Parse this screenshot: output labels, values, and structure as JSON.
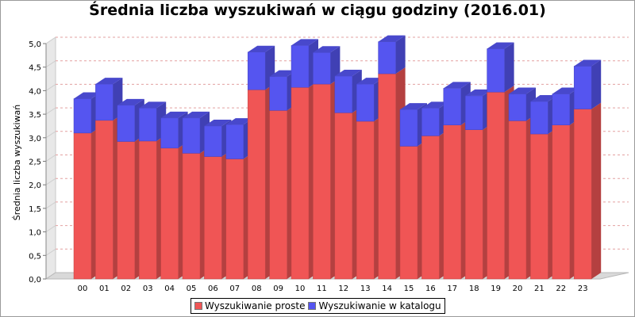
{
  "chart_data": {
    "type": "bar",
    "stacked": true,
    "title": "Średnia liczba wyszukiwań w ciągu godziny (2016.01)",
    "xlabel": "",
    "ylabel": "Średnia liczba wyszukiwań",
    "ylim": [
      0,
      5.0
    ],
    "yticks": [
      "0,0",
      "0,5",
      "1,0",
      "1,5",
      "2,0",
      "2,5",
      "3,0",
      "3,5",
      "4,0",
      "4,5",
      "5,0"
    ],
    "categories": [
      "00",
      "01",
      "02",
      "03",
      "04",
      "05",
      "06",
      "07",
      "08",
      "09",
      "10",
      "11",
      "12",
      "13",
      "14",
      "15",
      "16",
      "17",
      "18",
      "19",
      "20",
      "21",
      "22",
      "23"
    ],
    "series": [
      {
        "name": "Wyszukiwanie proste",
        "color": "#f05555",
        "values": [
          3.1,
          3.37,
          2.92,
          2.93,
          2.78,
          2.67,
          2.6,
          2.55,
          4.02,
          3.58,
          4.07,
          4.14,
          3.53,
          3.35,
          4.36,
          2.82,
          3.04,
          3.27,
          3.17,
          3.97,
          3.36,
          3.08,
          3.27,
          3.61
        ]
      },
      {
        "name": "Wyszukiwanie w katalogu",
        "color": "#5555f0",
        "values": [
          0.73,
          0.77,
          0.77,
          0.7,
          0.64,
          0.75,
          0.65,
          0.73,
          0.8,
          0.72,
          0.89,
          0.67,
          0.78,
          0.79,
          0.68,
          0.78,
          0.59,
          0.78,
          0.72,
          0.92,
          0.57,
          0.69,
          0.66,
          0.91
        ]
      }
    ],
    "grid": true,
    "legend": "bottom"
  }
}
